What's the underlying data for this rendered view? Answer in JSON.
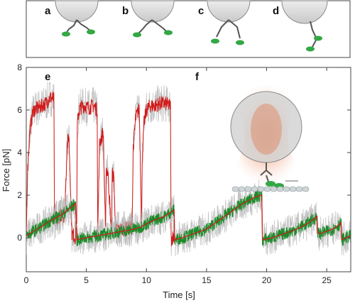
{
  "panel_letters": [
    "a",
    "b",
    "c",
    "d",
    "e",
    "f"
  ],
  "colors": {
    "force_trace": "#d21a1a",
    "baseline_trace": "#1d8a2a",
    "raw_noise": "#b4b4b4",
    "bead": "#d9d9d9",
    "trap_glow": "#e0784a",
    "protein": "#33a845",
    "filament": "#cfd6d8"
  },
  "icons": [
    "bead-icon",
    "motor-protein-icon",
    "optical-trap-icon",
    "microtubule-icon"
  ],
  "chart_data": {
    "type": "line",
    "xlabel": "Time [s]",
    "ylabel": "Force [pN]",
    "xlim": [
      0,
      27
    ],
    "ylim": [
      -1.6,
      8
    ],
    "xticks": [
      0,
      5,
      10,
      15,
      20,
      25
    ],
    "yticks": [
      0,
      2,
      4,
      6,
      8
    ],
    "grid": false,
    "series": [
      {
        "color": "#d21a1a",
        "x": [
          0,
          0.1,
          0.3,
          0.6,
          1.0,
          1.3,
          1.6,
          2.0,
          2.3,
          2.35,
          2.5,
          3.0,
          3.2,
          3.25,
          3.4,
          3.55,
          3.8,
          4.1,
          4.2,
          4.25,
          4.35,
          4.5,
          4.8,
          5.2,
          5.6,
          5.9,
          5.95,
          6.1,
          6.4,
          6.6,
          6.65,
          6.8,
          7.1,
          7.15,
          7.3,
          7.4,
          7.45,
          7.6,
          8.2,
          8.8,
          8.9,
          9.1,
          9.4,
          9.6,
          9.65,
          9.8,
          10.0,
          10.3,
          10.7,
          11.1,
          11.6,
          12.0,
          12.05,
          12.15,
          12.3
        ],
        "y": [
          0.1,
          3.0,
          5.1,
          6.0,
          6.1,
          6.2,
          6.3,
          6.6,
          6.5,
          0.8,
          0.9,
          1.1,
          1.0,
          2.0,
          4.3,
          4.8,
          0.2,
          0.0,
          0.9,
          5.3,
          5.9,
          6.1,
          6.2,
          6.1,
          6.2,
          6.0,
          0.2,
          4.4,
          5.0,
          0.2,
          3.3,
          3.0,
          0.2,
          3.0,
          2.8,
          0.3,
          0.3,
          0.4,
          0.4,
          0.5,
          4.2,
          5.6,
          6.1,
          0.6,
          3.7,
          5.4,
          6.0,
          6.2,
          6.2,
          6.3,
          6.3,
          6.2,
          -0.1,
          0.0,
          0.1
        ]
      },
      {
        "color": "#1d8a2a",
        "x": [
          0,
          0.6,
          1.2,
          2.0,
          3.0,
          4.1,
          4.2,
          5.0,
          6.0,
          7.0,
          8.0,
          8.9,
          9.5,
          10.5,
          11.5,
          12.3,
          12.35,
          13.0,
          14.0,
          15.0,
          16.0,
          17.0,
          18.0,
          19.0,
          19.6,
          19.65,
          20.5,
          21.5,
          22.5,
          23.5,
          24.2,
          24.25,
          24.5,
          25.0,
          25.5,
          26.0,
          26.2,
          26.25,
          26.6,
          27.0
        ],
        "y": [
          0.1,
          0.3,
          0.5,
          0.8,
          1.1,
          1.6,
          -0.1,
          0.0,
          0.1,
          0.2,
          0.3,
          0.4,
          0.5,
          0.8,
          1.0,
          1.3,
          -0.1,
          0.0,
          0.2,
          0.4,
          0.8,
          1.2,
          1.6,
          1.9,
          2.0,
          -0.1,
          0.0,
          0.2,
          0.4,
          0.7,
          1.0,
          0.2,
          0.2,
          0.3,
          0.4,
          0.6,
          0.7,
          -0.1,
          0.0,
          0.1
        ]
      }
    ]
  }
}
